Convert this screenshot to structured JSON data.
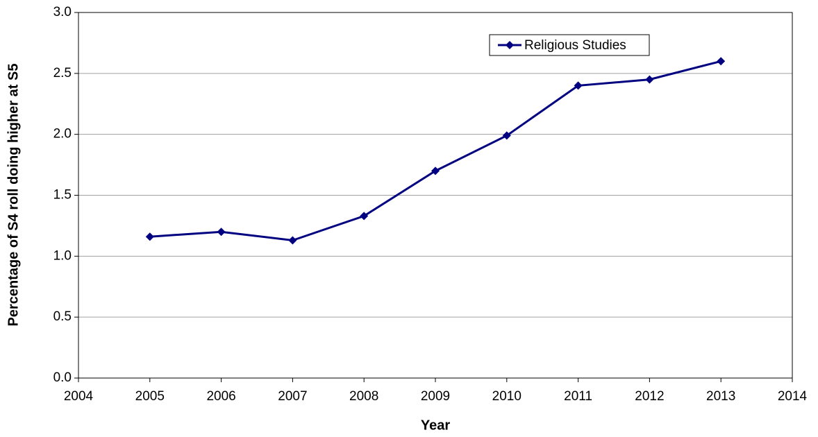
{
  "chart_data": {
    "type": "line",
    "x_label": "Year",
    "y_label": "Percentage of S4 roll doing higher at S5",
    "x": [
      2005,
      2006,
      2007,
      2008,
      2009,
      2010,
      2011,
      2012,
      2013
    ],
    "series": [
      {
        "name": "Religious Studies",
        "color": "#000080",
        "values": [
          1.16,
          1.2,
          1.13,
          1.33,
          1.7,
          1.99,
          2.4,
          2.45,
          2.6
        ]
      }
    ],
    "xlim": [
      2004,
      2014
    ],
    "xticks": [
      2004,
      2005,
      2006,
      2007,
      2008,
      2009,
      2010,
      2011,
      2012,
      2013,
      2014
    ],
    "ylim": [
      0,
      3
    ],
    "yticks": [
      {
        "value": 0,
        "label": "0.0"
      },
      0.5,
      {
        "value": 1,
        "label": "1.0"
      },
      1.5,
      {
        "value": 2,
        "label": "2.0"
      },
      2.5,
      {
        "value": 3,
        "label": "3.0"
      }
    ],
    "grid": true,
    "legend": "top-right"
  }
}
